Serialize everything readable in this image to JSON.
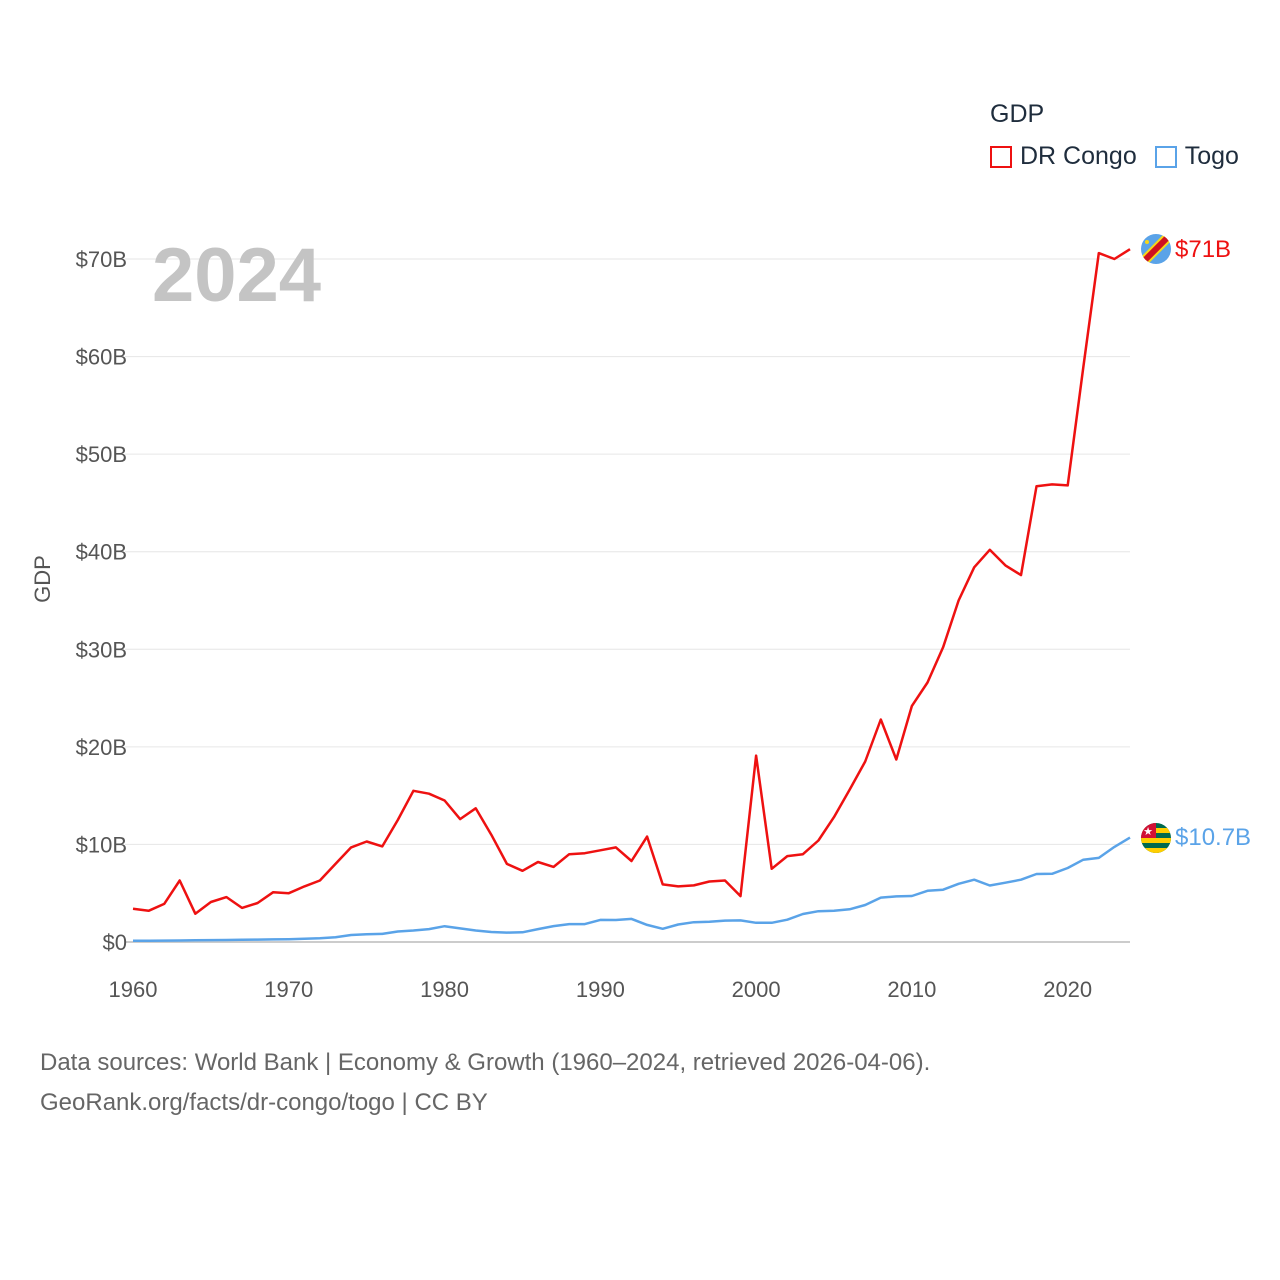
{
  "chart_data": {
    "type": "line",
    "big_year_label": "2024",
    "ylabel": "GDP",
    "legend_title": "GDP",
    "x": [
      1960,
      1961,
      1962,
      1963,
      1964,
      1965,
      1966,
      1967,
      1968,
      1969,
      1970,
      1971,
      1972,
      1973,
      1974,
      1975,
      1976,
      1977,
      1978,
      1979,
      1980,
      1981,
      1982,
      1983,
      1984,
      1985,
      1986,
      1987,
      1988,
      1989,
      1990,
      1991,
      1992,
      1993,
      1994,
      1995,
      1996,
      1997,
      1998,
      1999,
      2000,
      2001,
      2002,
      2003,
      2004,
      2005,
      2006,
      2007,
      2008,
      2009,
      2010,
      2011,
      2012,
      2013,
      2014,
      2015,
      2016,
      2017,
      2018,
      2019,
      2020,
      2021,
      2022,
      2023,
      2024
    ],
    "xlim": [
      1960,
      2024
    ],
    "ylim": [
      0,
      70
    ],
    "xticks": [
      {
        "value": 1960,
        "label": "1960"
      },
      {
        "value": 1970,
        "label": "1970"
      },
      {
        "value": 1980,
        "label": "1980"
      },
      {
        "value": 1990,
        "label": "1990"
      },
      {
        "value": 2000,
        "label": "2000"
      },
      {
        "value": 2010,
        "label": "2010"
      },
      {
        "value": 2020,
        "label": "2020"
      }
    ],
    "yticks": [
      {
        "value": 0,
        "label": "$0"
      },
      {
        "value": 10,
        "label": "$10B"
      },
      {
        "value": 20,
        "label": "$20B"
      },
      {
        "value": 30,
        "label": "$30B"
      },
      {
        "value": 40,
        "label": "$40B"
      },
      {
        "value": 50,
        "label": "$50B"
      },
      {
        "value": 60,
        "label": "$60B"
      },
      {
        "value": 70,
        "label": "$70B"
      }
    ],
    "grid": true,
    "legend_position": "top-right",
    "series": [
      {
        "name": "DR Congo",
        "color": "#ee1111",
        "end_label": "$71B",
        "values": [
          3.4,
          3.2,
          3.9,
          6.3,
          2.9,
          4.1,
          4.6,
          3.5,
          4.0,
          5.1,
          5.0,
          5.7,
          6.3,
          8.0,
          9.7,
          10.3,
          9.8,
          12.5,
          15.5,
          15.2,
          14.5,
          12.6,
          13.7,
          11.0,
          8.0,
          7.3,
          8.2,
          7.7,
          9.0,
          9.1,
          9.4,
          9.7,
          8.3,
          10.8,
          5.9,
          5.7,
          5.8,
          6.2,
          6.3,
          4.7,
          19.1,
          7.5,
          8.8,
          9.0,
          10.4,
          12.8,
          15.6,
          18.5,
          22.8,
          18.7,
          24.2,
          26.6,
          30.2,
          35.0,
          38.4,
          40.2,
          38.6,
          37.6,
          46.7,
          46.9,
          46.8,
          58.9,
          70.6,
          70.0,
          71.0
        ]
      },
      {
        "name": "Togo",
        "color": "#5aa3e8",
        "end_label": "$10.7B",
        "values": [
          0.12,
          0.13,
          0.14,
          0.15,
          0.17,
          0.19,
          0.21,
          0.23,
          0.25,
          0.27,
          0.29,
          0.33,
          0.39,
          0.49,
          0.72,
          0.79,
          0.83,
          1.08,
          1.18,
          1.32,
          1.62,
          1.39,
          1.18,
          1.03,
          0.96,
          0.99,
          1.32,
          1.63,
          1.83,
          1.83,
          2.27,
          2.25,
          2.37,
          1.75,
          1.35,
          1.79,
          2.03,
          2.07,
          2.19,
          2.21,
          1.97,
          1.97,
          2.29,
          2.87,
          3.16,
          3.21,
          3.35,
          3.79,
          4.55,
          4.67,
          4.71,
          5.25,
          5.36,
          5.96,
          6.39,
          5.79,
          6.08,
          6.39,
          6.97,
          6.99,
          7.58,
          8.43,
          8.62,
          9.75,
          10.7
        ]
      }
    ]
  },
  "footer": {
    "line1": "Data sources: World Bank | Economy & Growth (1960–2024, retrieved 2026-04-06).",
    "line2": "GeoRank.org/facts/dr-congo/togo | CC BY"
  }
}
